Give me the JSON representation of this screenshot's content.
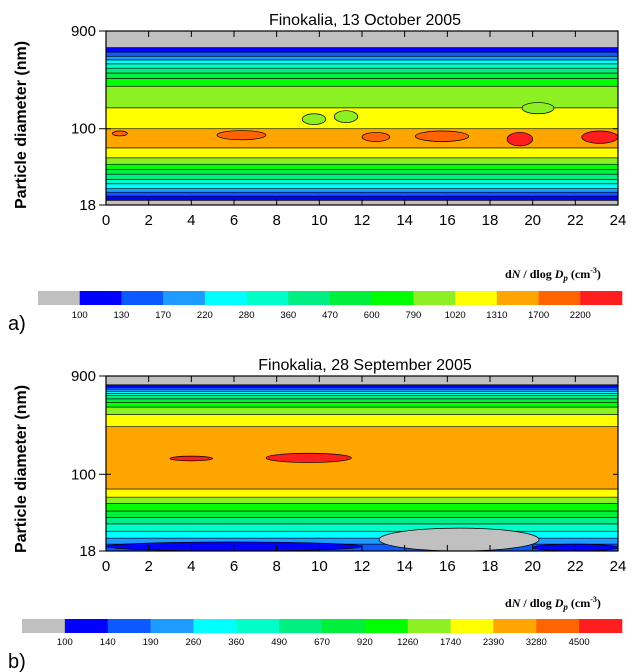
{
  "chart_data": [
    {
      "type": "heatmap",
      "panel_label": "a)",
      "title": "Finokalia, 13 October 2005",
      "ylabel": "Particle diameter (nm)",
      "xlabel": "",
      "xlim": [
        0,
        24
      ],
      "ylim": [
        18,
        900
      ],
      "y_scale": "log",
      "xticks": [
        "0",
        "2",
        "4",
        "6",
        "8",
        "10",
        "12",
        "14",
        "16",
        "18",
        "20",
        "22",
        "24"
      ],
      "yticks": [
        "18",
        "100",
        "900"
      ],
      "colorbar_label": "dN / dlog Dp (cm-3)",
      "colorbar_levels": [
        "100",
        "130",
        "170",
        "220",
        "280",
        "360",
        "470",
        "600",
        "790",
        "1020",
        "1310",
        "1700",
        "2200"
      ],
      "colorbar_colors": [
        "#c0c0c0",
        "#0000ff",
        "#0b59ff",
        "#1e9bff",
        "#00ffff",
        "#00ffc8",
        "#00ef82",
        "#00f03c",
        "#00ff00",
        "#8cf023",
        "#ffff00",
        "#ffa500",
        "#ff6400",
        "#ff1e1e"
      ],
      "diameter_bands": [
        {
          "dp": 18,
          "level": 0
        },
        {
          "dp": 20,
          "level": 1
        },
        {
          "dp": 22,
          "level": 2
        },
        {
          "dp": 24,
          "level": 3
        },
        {
          "dp": 26,
          "level": 4
        },
        {
          "dp": 29,
          "level": 5
        },
        {
          "dp": 32,
          "level": 6
        },
        {
          "dp": 36,
          "level": 7
        },
        {
          "dp": 40,
          "level": 8
        },
        {
          "dp": 45,
          "level": 9
        },
        {
          "dp": 52,
          "level": 10
        },
        {
          "dp": 65,
          "level": 11
        },
        {
          "dp": 100,
          "level": 10
        },
        {
          "dp": 160,
          "level": 9
        },
        {
          "dp": 260,
          "level": 8
        },
        {
          "dp": 310,
          "level": 7
        },
        {
          "dp": 350,
          "level": 6
        },
        {
          "dp": 390,
          "level": 5
        },
        {
          "dp": 430,
          "level": 4
        },
        {
          "dp": 470,
          "level": 3
        },
        {
          "dp": 510,
          "level": 2
        },
        {
          "dp": 560,
          "level": 1
        },
        {
          "dp": 620,
          "level": 0
        }
      ],
      "patches": [
        {
          "x": [
            0.3,
            1.0
          ],
          "y": [
            85,
            95
          ],
          "level": 12
        },
        {
          "x": [
            5.2,
            7.5
          ],
          "y": [
            78,
            96
          ],
          "level": 12
        },
        {
          "x": [
            12.0,
            13.3
          ],
          "y": [
            75,
            92
          ],
          "level": 12
        },
        {
          "x": [
            14.5,
            17.0
          ],
          "y": [
            75,
            95
          ],
          "level": 12
        },
        {
          "x": [
            18.8,
            20.0
          ],
          "y": [
            68,
            92
          ],
          "level": 13
        },
        {
          "x": [
            22.3,
            24.0
          ],
          "y": [
            72,
            95
          ],
          "level": 13
        },
        {
          "x": [
            9.2,
            10.3
          ],
          "y": [
            110,
            140
          ],
          "level": 9
        },
        {
          "x": [
            10.7,
            11.8
          ],
          "y": [
            115,
            150
          ],
          "level": 9
        },
        {
          "x": [
            19.5,
            21.0
          ],
          "y": [
            140,
            180
          ],
          "level": 9
        }
      ]
    },
    {
      "type": "heatmap",
      "panel_label": "b)",
      "title": "Finokalia, 28 September 2005",
      "ylabel": "Particle diameter (nm)",
      "xlabel": "",
      "xlim": [
        0,
        24
      ],
      "ylim": [
        18,
        900
      ],
      "y_scale": "log",
      "xticks": [
        "0",
        "2",
        "4",
        "6",
        "8",
        "10",
        "12",
        "14",
        "16",
        "18",
        "20",
        "22",
        "24"
      ],
      "yticks": [
        "18",
        "100",
        "900"
      ],
      "colorbar_label": "dN / dlog Dp (cm-3)",
      "colorbar_levels": [
        "100",
        "140",
        "190",
        "260",
        "360",
        "490",
        "670",
        "920",
        "1260",
        "1740",
        "2390",
        "3280",
        "4500"
      ],
      "colorbar_colors": [
        "#c0c0c0",
        "#0000ff",
        "#0b59ff",
        "#1e9bff",
        "#00ffff",
        "#00ffc8",
        "#00ef82",
        "#00f03c",
        "#00ff00",
        "#8cf023",
        "#ffff00",
        "#ffa500",
        "#ff6400",
        "#ff1e1e"
      ],
      "diameter_bands": [
        {
          "dp": 18,
          "level": 2
        },
        {
          "dp": 21,
          "level": 3
        },
        {
          "dp": 24,
          "level": 4
        },
        {
          "dp": 28,
          "level": 5
        },
        {
          "dp": 33,
          "level": 6
        },
        {
          "dp": 38,
          "level": 7
        },
        {
          "dp": 44,
          "level": 8
        },
        {
          "dp": 52,
          "level": 9
        },
        {
          "dp": 60,
          "level": 10
        },
        {
          "dp": 72,
          "level": 11
        },
        {
          "dp": 290,
          "level": 10
        },
        {
          "dp": 380,
          "level": 9
        },
        {
          "dp": 450,
          "level": 8
        },
        {
          "dp": 500,
          "level": 7
        },
        {
          "dp": 540,
          "level": 6
        },
        {
          "dp": 580,
          "level": 5
        },
        {
          "dp": 610,
          "level": 4
        },
        {
          "dp": 640,
          "level": 3
        },
        {
          "dp": 670,
          "level": 2
        },
        {
          "dp": 700,
          "level": 1
        },
        {
          "dp": 740,
          "level": 0
        }
      ],
      "patches": [
        {
          "x": [
            0.0,
            12.0
          ],
          "y": [
            18,
            22
          ],
          "level": 1
        },
        {
          "x": [
            20.0,
            24.0
          ],
          "y": [
            18,
            21
          ],
          "level": 1
        },
        {
          "x": [
            12.8,
            20.3
          ],
          "y": [
            18,
            30
          ],
          "level": 0
        },
        {
          "x": [
            3.0,
            5.0
          ],
          "y": [
            135,
            150
          ],
          "level": 13
        },
        {
          "x": [
            7.5,
            11.5
          ],
          "y": [
            130,
            160
          ],
          "level": 13
        }
      ]
    }
  ]
}
